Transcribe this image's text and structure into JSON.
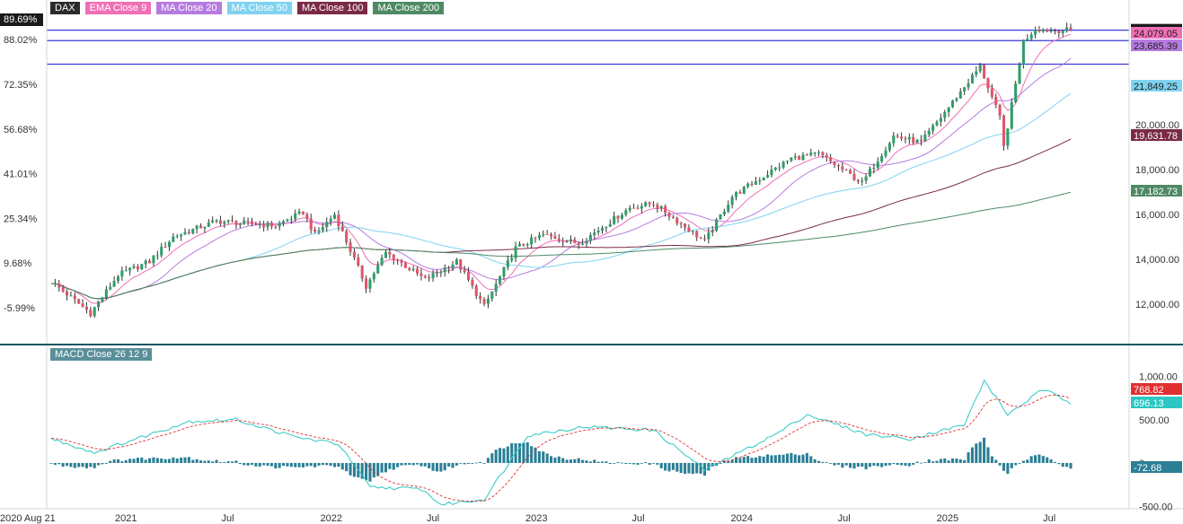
{
  "legend": [
    {
      "label": "DAX",
      "color": "#2b2b2b"
    },
    {
      "label": "EMA Close 9",
      "color": "#f06fb5"
    },
    {
      "label": "MA Close 20",
      "color": "#b67be0"
    },
    {
      "label": "MA Close 50",
      "color": "#7fd3f0"
    },
    {
      "label": "MA Close 100",
      "color": "#7a2a47"
    },
    {
      "label": "MA Close 200",
      "color": "#4e8a64"
    }
  ],
  "macd_legend": {
    "label": "MACD Close 26 12 9",
    "color": "#5a8f9a"
  },
  "colors": {
    "up": "#2f9e6a",
    "down": "#e0556a",
    "wick": "#333333",
    "hline": "#3a3ad8",
    "macd": "#2cc7c2",
    "signal": "#e03030",
    "hist": "#2a7f95",
    "frame": "#1a5566"
  },
  "chart_data": [
    {
      "type": "candlestick",
      "title": "DAX",
      "frequency": "weekly",
      "x_ticks": [
        "2020 Aug 21",
        "2021",
        "Jul",
        "2022",
        "Jul",
        "2023",
        "Jul",
        "2024",
        "Jul",
        "2025",
        "Jul"
      ],
      "y_ticks_right": [
        "12,000.00",
        "14,000.00",
        "16,000.00",
        "18,000.00",
        "20,000.00"
      ],
      "y_ticks_left": [
        "-5.99%",
        "9.68%",
        "25.34%",
        "41.01%",
        "56.68%",
        "72.35%",
        "88.02%"
      ],
      "percent_readout": "89.69%",
      "ylim": [
        10200,
        24800
      ],
      "close_path": [
        [
          "2020-08-21",
          13000
        ],
        [
          "2020-10-30",
          11600
        ],
        [
          "2020-12-18",
          13300
        ],
        [
          "2021-02-12",
          13900
        ],
        [
          "2021-03-26",
          15000
        ],
        [
          "2021-06-11",
          15700
        ],
        [
          "2021-09-24",
          15500
        ],
        [
          "2021-11-12",
          16100
        ],
        [
          "2021-12-03",
          15100
        ],
        [
          "2022-01-07",
          16000
        ],
        [
          "2022-03-04",
          12800
        ],
        [
          "2022-04-08",
          14300
        ],
        [
          "2022-06-17",
          13100
        ],
        [
          "2022-08-12",
          13900
        ],
        [
          "2022-09-30",
          11900
        ],
        [
          "2022-11-25",
          14500
        ],
        [
          "2023-01-13",
          15100
        ],
        [
          "2023-03-17",
          14700
        ],
        [
          "2023-06-16",
          16300
        ],
        [
          "2023-07-28",
          16500
        ],
        [
          "2023-10-27",
          14800
        ],
        [
          "2023-12-15",
          16800
        ],
        [
          "2024-03-29",
          18500
        ],
        [
          "2024-05-17",
          18700
        ],
        [
          "2024-08-02",
          17400
        ],
        [
          "2024-09-27",
          19500
        ],
        [
          "2024-11-15",
          19200
        ],
        [
          "2025-02-28",
          22600
        ],
        [
          "2025-04-04",
          20300
        ],
        [
          "2025-04-11",
          19000
        ],
        [
          "2025-05-16",
          23700
        ],
        [
          "2025-06-06",
          24300
        ],
        [
          "2025-07-04",
          24200
        ],
        [
          "2025-08-08",
          24213.51
        ]
      ],
      "horizontal_levels": [
        24213.51,
        22700,
        23750
      ],
      "overlays": [
        {
          "name": "EMA Close 9",
          "last": "24,079.05",
          "color": "#f06fb5"
        },
        {
          "name": "MA Close 20",
          "last": "23,685.39",
          "color": "#b67be0"
        },
        {
          "name": "MA Close 50",
          "last": "21,849.25",
          "color": "#7fd3f0"
        },
        {
          "name": "MA Close 100",
          "last": "19,631.78",
          "color": "#7a2a47"
        },
        {
          "name": "MA Close 200",
          "last": "17,182.73",
          "color": "#4e8a64"
        }
      ],
      "last_price": "24,213.51"
    },
    {
      "type": "line",
      "title": "MACD Close 26 12 9",
      "y_ticks": [
        "1,000.00",
        "500.00",
        "0",
        "-500.00"
      ],
      "ylim": [
        -520,
        1080
      ],
      "macd_path": [
        [
          "2020-08-21",
          280
        ],
        [
          "2020-11-06",
          120
        ],
        [
          "2021-01-29",
          300
        ],
        [
          "2021-04-23",
          480
        ],
        [
          "2021-07-16",
          500
        ],
        [
          "2021-10-29",
          300
        ],
        [
          "2022-01-14",
          220
        ],
        [
          "2022-03-11",
          -280
        ],
        [
          "2022-06-10",
          -300
        ],
        [
          "2022-07-15",
          -480
        ],
        [
          "2022-09-30",
          -420
        ],
        [
          "2022-12-16",
          320
        ],
        [
          "2023-03-31",
          420
        ],
        [
          "2023-07-28",
          380
        ],
        [
          "2023-10-27",
          -80
        ],
        [
          "2024-03-01",
          330
        ],
        [
          "2024-04-26",
          560
        ],
        [
          "2024-08-09",
          330
        ],
        [
          "2024-10-25",
          280
        ],
        [
          "2025-01-31",
          440
        ],
        [
          "2025-03-07",
          950
        ],
        [
          "2025-04-18",
          560
        ],
        [
          "2025-06-20",
          850
        ],
        [
          "2025-08-08",
          696.13
        ]
      ],
      "signal_last": "768.82",
      "macd_last": "696.13",
      "hist_last": "-72.68"
    }
  ]
}
